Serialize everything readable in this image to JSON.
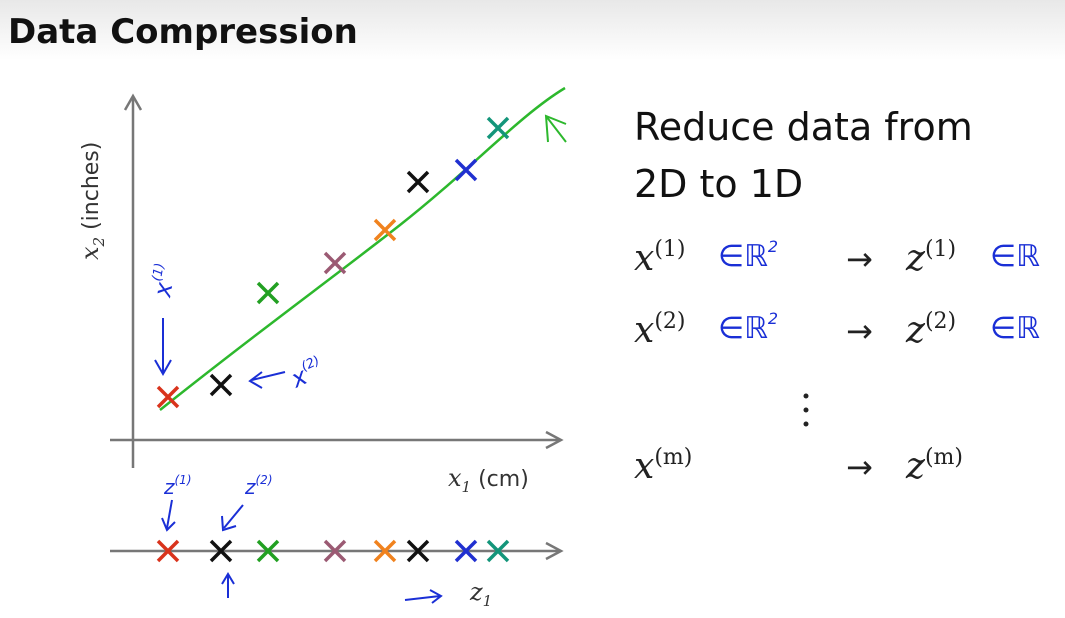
{
  "header": {
    "title": "Data Compression"
  },
  "plot": {
    "y_axis": {
      "base": "x",
      "sub": "2",
      "text": " (inches)"
    },
    "x_axis": {
      "base": "x",
      "sub": "1",
      "text": " (cm)"
    },
    "z_axis": {
      "base": "z",
      "sub": "1"
    }
  },
  "annotations": [
    {
      "base": "x",
      "sup": "(1)"
    },
    {
      "base": "x",
      "sup": "(2)"
    },
    {
      "base": "z",
      "sup": "(1)"
    },
    {
      "base": "z",
      "sup": "(2)"
    }
  ],
  "explanation": {
    "line1": "Reduce data from",
    "line2": "2D to 1D",
    "rows": [
      {
        "x": "x",
        "x_sup": "(1)",
        "x_set": "∈ℝ",
        "x_set_sup": "2",
        "arrow": "→",
        "z": "z",
        "z_sup": "(1)",
        "z_set": "∈ℝ"
      },
      {
        "x": "x",
        "x_sup": "(2)",
        "x_set": "∈ℝ",
        "x_set_sup": "2",
        "arrow": "→",
        "z": "z",
        "z_sup": "(2)",
        "z_set": "∈ℝ"
      },
      {
        "x": "x",
        "x_sup": "(m)",
        "arrow": "→",
        "z": "z",
        "z_sup": "(m)"
      }
    ]
  }
}
